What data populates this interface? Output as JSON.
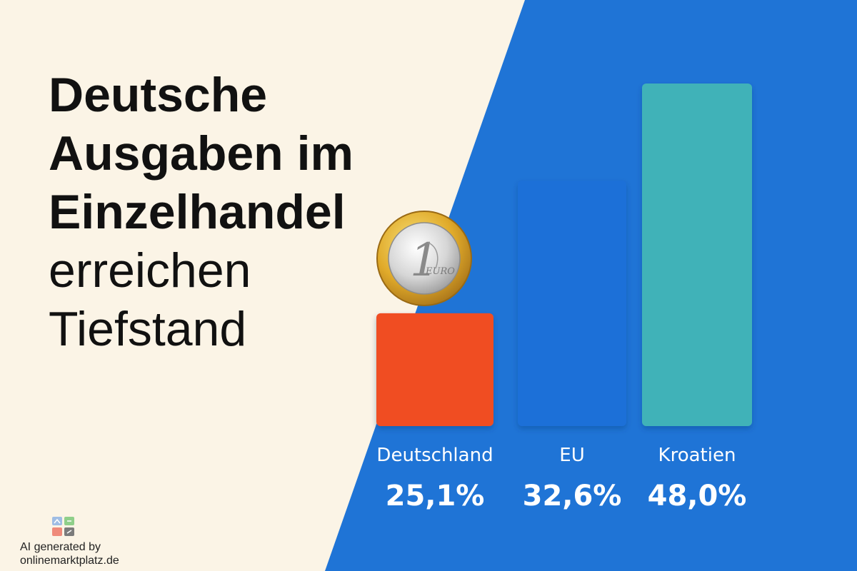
{
  "title": {
    "line1": "Deutsche",
    "line2": "Ausgaben im",
    "line3": "Einzelhandel",
    "line4": "erreichen",
    "line5": "Tiefstand"
  },
  "colors": {
    "background_left": "#fbf4e6",
    "background_right": "#1f74d6",
    "bar_deutschland": "#f04e23",
    "bar_eu": "#1d6fd8",
    "bar_kroatien": "#41b2b8"
  },
  "coin": {
    "value_text": "1",
    "unit_text": "EURO"
  },
  "credit": {
    "line1": "AI generated by",
    "line2": "onlinemarktplatz.de"
  },
  "chart_data": {
    "type": "bar",
    "categories": [
      "Deutschland",
      "EU",
      "Kroatien"
    ],
    "values": [
      25.1,
      32.6,
      48.0
    ],
    "value_labels": [
      "25,1%",
      "32,6%",
      "48,0%"
    ],
    "colors": [
      "#f04e23",
      "#1d6fd8",
      "#41b2b8"
    ],
    "title": "",
    "xlabel": "",
    "ylabel": "",
    "ylim": [
      0,
      50
    ],
    "grid": false,
    "legend": "none"
  }
}
